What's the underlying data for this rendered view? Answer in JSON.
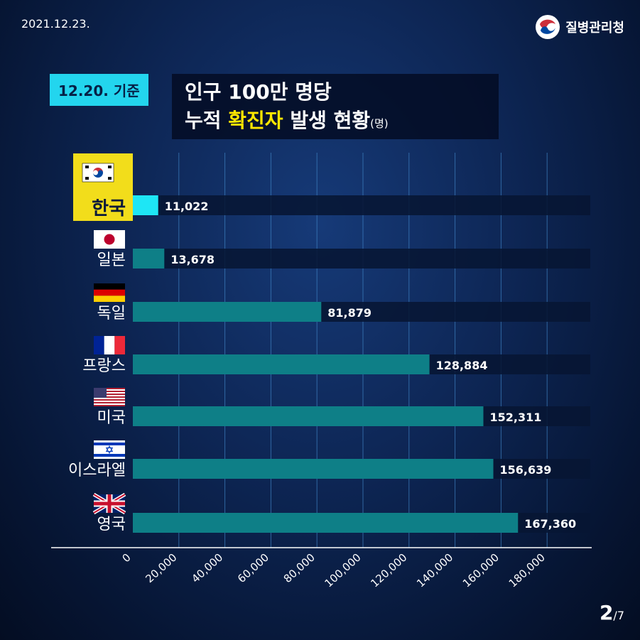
{
  "header": {
    "date": "2021.12.23.",
    "agency": "질병관리청",
    "date_badge": "12.20. 기준",
    "title_line1": "인구 100만 명당",
    "title_line2_pre": "누적",
    "title_line2_highlight": "확진자",
    "title_line2_post": "발생 현황",
    "title_unit": "(명)"
  },
  "page": {
    "current": "2",
    "total": "/7"
  },
  "colors": {
    "bar_highlight": "#1ee6f5",
    "bar_default": "#0e7f87",
    "track": "#071633",
    "label_highlight_bg": "#f2dd1b",
    "label_text": "#ffffff",
    "gridline": "#3f83c4"
  },
  "chart_data": {
    "type": "bar",
    "orientation": "horizontal",
    "categories": [
      "한국",
      "일본",
      "독일",
      "프랑스",
      "미국",
      "이스라엘",
      "영국"
    ],
    "flags": [
      "south-korea-flag",
      "japan-flag",
      "germany-flag",
      "france-flag",
      "usa-flag",
      "israel-flag",
      "uk-flag"
    ],
    "values": [
      11022,
      13678,
      81879,
      128884,
      152311,
      156639,
      167360
    ],
    "value_labels": [
      "11,022",
      "13,678",
      "81,879",
      "128,884",
      "152,311",
      "156,639",
      "167,360"
    ],
    "highlight_category": "한국",
    "x_ticks": [
      "0",
      "20,000",
      "40,000",
      "60,000",
      "80,000",
      "100,000",
      "120,000",
      "140,000",
      "160,000",
      "180,000"
    ],
    "x_tick_values": [
      0,
      20000,
      40000,
      60000,
      80000,
      100000,
      120000,
      140000,
      160000,
      180000
    ],
    "xlim": [
      0,
      200000
    ],
    "grid": true,
    "legend": "none"
  }
}
